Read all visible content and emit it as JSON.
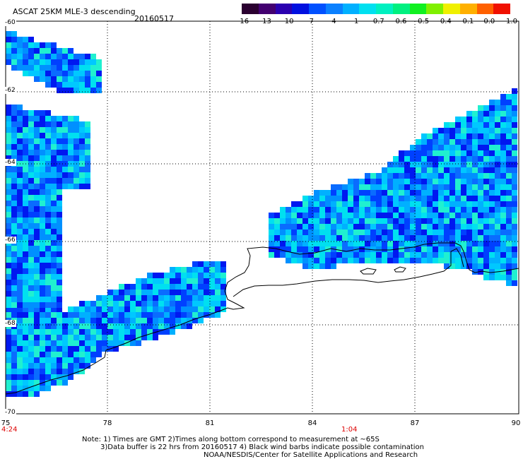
{
  "header": {
    "title": "ASCAT 25KM MLE-3 descending",
    "date": "20160517"
  },
  "colorbar": {
    "colors": [
      "#2a0030",
      "#430070",
      "#2a00b0",
      "#0010e0",
      "#0050ff",
      "#0a80ff",
      "#00b0ff",
      "#00e0f0",
      "#00f0c0",
      "#00f080",
      "#10f020",
      "#80f000",
      "#f0f000",
      "#ffb000",
      "#ff6000",
      "#f01000"
    ],
    "labels": [
      "-16",
      "-13",
      "-10",
      "-7",
      "-4",
      "-1",
      "-0.7",
      "-0.6",
      "-0.5",
      "-0.4",
      "-0.1",
      "0.0",
      "1.0"
    ]
  },
  "map": {
    "lon_ticks": [
      "75",
      "78",
      "81",
      "84",
      "87",
      "90"
    ],
    "lat_ticks": [
      "-60",
      "-62",
      "-64",
      "-66",
      "-68",
      "-70"
    ],
    "times": {
      "left": "4:24",
      "mid": "1:04"
    }
  },
  "notes": {
    "line1": "Note: 1) Times are GMT 2)Times along bottom correspond to measurement at ~65S",
    "line2": "3)Data buffer is 22 hrs from 20160517 4) Black wind barbs indicate possible contamination",
    "line3": "NOAA/NESDIS/Center for Satellite Applications and Research"
  }
}
